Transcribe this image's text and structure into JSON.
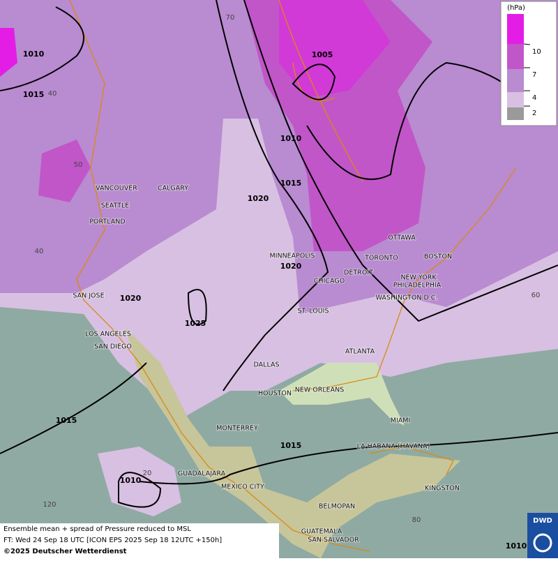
{
  "map": {
    "cities": [
      "VANCOUVER",
      "CALGARY",
      "SEATTLE",
      "PORTLAND",
      "SAN JOSE",
      "LOS ANGELES",
      "SAN DIEGO",
      "MINNEAPOLIS",
      "TORONTO",
      "OTTAWA",
      "BOSTON",
      "DETROIT",
      "NEW YORK",
      "PHILADELPHIA",
      "CHICAGO",
      "WASHINGTON D.C.",
      "ST. LOUIS",
      "ATLANTA",
      "DALLAS",
      "HOUSTON",
      "NEW ORLEANS",
      "MIAMI",
      "MONTERREY",
      "LA HABANA (HAVANA)",
      "GUADALAJARA",
      "MEXICO CITY",
      "KINGSTON",
      "BELMOPAN",
      "GUATEMALA",
      "SAN SALVADOR"
    ],
    "isobar_labels": [
      1010,
      1015,
      1005,
      1010,
      1015,
      1020,
      1020,
      1020,
      1025,
      1015,
      1015,
      1010,
      1010
    ],
    "graticule_labels": [
      70,
      40,
      50,
      40,
      60,
      20,
      120,
      80
    ]
  },
  "legend": {
    "unit": "(hPa)",
    "levels": [
      10,
      7,
      4,
      2
    ]
  },
  "caption": {
    "line1": "Ensemble mean + spread of Pressure reduced to MSL",
    "line2": "FT: Wed 24 Sep 18 UTC [ICON EPS 2025 Sep 18 12UTC +150h]",
    "line3": "©2025 Deutscher Wetterdienst"
  },
  "logo": "DWD"
}
